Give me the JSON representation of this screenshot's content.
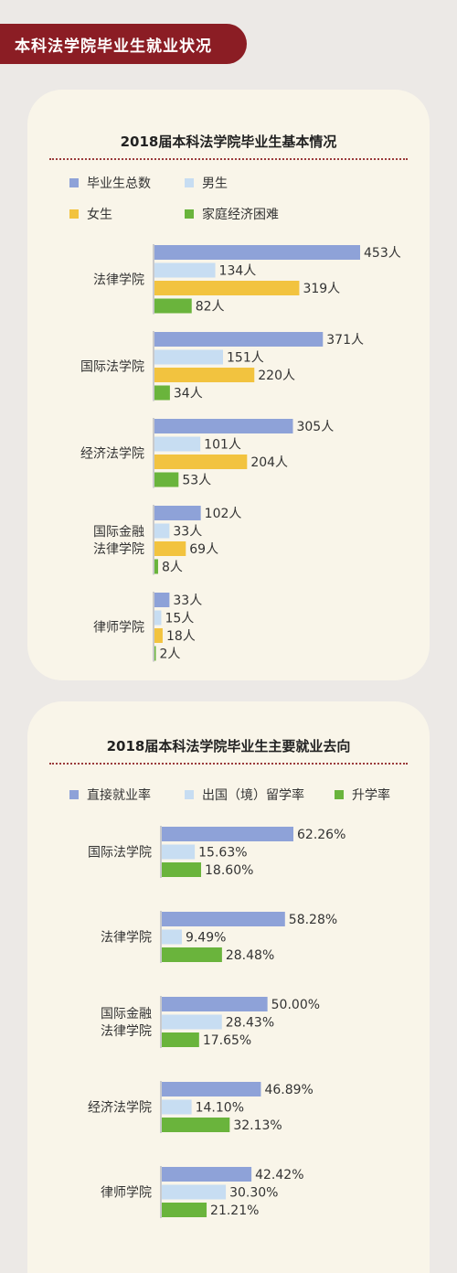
{
  "header": {
    "title": "本科法学院毕业生就业状况"
  },
  "colors": {
    "blue": "#8ea2d8",
    "lightblue": "#c7ddf2",
    "yellow": "#f2c33f",
    "green": "#6ab43c",
    "banner": "#8b1d24"
  },
  "chart_data": [
    {
      "type": "bar",
      "orientation": "horizontal",
      "title": "2018届本科法学院毕业生基本情况",
      "categories": [
        "法律学院",
        "国际法学院",
        "经济法学院",
        "国际金融\n法律学院",
        "律师学院"
      ],
      "unit_suffix": "人",
      "legend": [
        "毕业生总数",
        "男生",
        "女生",
        "家庭经济困难"
      ],
      "legend_placement": "top",
      "series": [
        {
          "name": "毕业生总数",
          "color": "#8ea2d8",
          "values": [
            453,
            371,
            305,
            102,
            33
          ]
        },
        {
          "name": "男生",
          "color": "#c7ddf2",
          "values": [
            134,
            151,
            101,
            33,
            15
          ]
        },
        {
          "name": "女生",
          "color": "#f2c33f",
          "values": [
            319,
            220,
            204,
            69,
            18
          ]
        },
        {
          "name": "家庭经济困难",
          "color": "#6ab43c",
          "values": [
            82,
            34,
            53,
            8,
            2
          ]
        }
      ],
      "labels": [
        [
          "453人",
          "134人",
          "319人",
          "82人"
        ],
        [
          "371人",
          "151人",
          "220人",
          "34人"
        ],
        [
          "305人",
          "101人",
          "204人",
          "53人"
        ],
        [
          "102人",
          "33人",
          "69人",
          "8人"
        ],
        [
          "33人",
          "15人",
          "18人",
          "2人"
        ]
      ],
      "grid": false
    },
    {
      "type": "bar",
      "orientation": "horizontal",
      "title": "2018届本科法学院毕业生主要就业去向",
      "categories": [
        "国际法学院",
        "法律学院",
        "国际金融\n法律学院",
        "经济法学院",
        "律师学院"
      ],
      "unit_suffix": "%",
      "legend": [
        "直接就业率",
        "出国（境）留学率",
        "升学率"
      ],
      "legend_placement": "top",
      "series": [
        {
          "name": "直接就业率",
          "color": "#8ea2d8",
          "values": [
            62.26,
            58.28,
            50.0,
            46.89,
            42.42
          ]
        },
        {
          "name": "出国（境）留学率",
          "color": "#c7ddf2",
          "values": [
            15.63,
            9.49,
            28.43,
            14.1,
            30.3
          ]
        },
        {
          "name": "升学率",
          "color": "#6ab43c",
          "values": [
            18.6,
            28.48,
            17.65,
            32.13,
            21.21
          ]
        }
      ],
      "labels": [
        [
          "62.26%",
          "15.63%",
          "18.60%"
        ],
        [
          "58.28%",
          "9.49%",
          "28.48%"
        ],
        [
          "50.00%",
          "28.43%",
          "17.65%"
        ],
        [
          "46.89%",
          "14.10%",
          "32.13%"
        ],
        [
          "42.42%",
          "30.30%",
          "21.21%"
        ]
      ],
      "grid": false
    }
  ]
}
